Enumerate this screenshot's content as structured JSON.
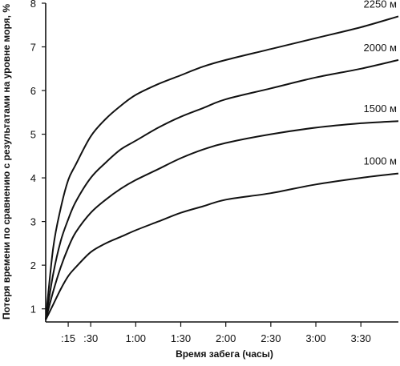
{
  "chart_data": {
    "type": "line",
    "title": "",
    "xlabel": "Время забега (часы)",
    "ylabel": "Потеря времени по сравнению с результатами на уровне моря, %",
    "x_unit": "minutes",
    "xlim": [
      0,
      235
    ],
    "ylim": [
      0.7,
      8
    ],
    "x_ticks": [
      {
        "value": 15,
        "label": ":15"
      },
      {
        "value": 30,
        "label": ":30"
      },
      {
        "value": 60,
        "label": "1:00"
      },
      {
        "value": 90,
        "label": "1:30"
      },
      {
        "value": 120,
        "label": "2:00"
      },
      {
        "value": 150,
        "label": "2:30"
      },
      {
        "value": 180,
        "label": "3:00"
      },
      {
        "value": 210,
        "label": "3:30"
      }
    ],
    "y_ticks": [
      {
        "value": 1,
        "label": "1"
      },
      {
        "value": 2,
        "label": "2"
      },
      {
        "value": 3,
        "label": "3"
      },
      {
        "value": 4,
        "label": "4"
      },
      {
        "value": 5,
        "label": "5"
      },
      {
        "value": 6,
        "label": "6"
      },
      {
        "value": 7,
        "label": "7"
      },
      {
        "value": 8,
        "label": "8"
      }
    ],
    "grid": false,
    "legend": "none",
    "series": [
      {
        "name": "2250 м",
        "x": [
          0,
          5,
          10,
          15,
          20,
          30,
          40,
          50,
          60,
          75,
          90,
          105,
          120,
          150,
          180,
          210,
          235
        ],
        "y": [
          0.75,
          2.4,
          3.3,
          3.95,
          4.3,
          4.95,
          5.35,
          5.65,
          5.9,
          6.15,
          6.35,
          6.55,
          6.7,
          6.95,
          7.2,
          7.45,
          7.7
        ]
      },
      {
        "name": "2000 м",
        "x": [
          0,
          5,
          10,
          15,
          20,
          30,
          40,
          50,
          60,
          75,
          90,
          105,
          120,
          150,
          180,
          210,
          235
        ],
        "y": [
          0.75,
          1.8,
          2.55,
          3.05,
          3.45,
          4.0,
          4.35,
          4.65,
          4.85,
          5.15,
          5.4,
          5.6,
          5.8,
          6.05,
          6.3,
          6.5,
          6.7
        ]
      },
      {
        "name": "1500 м",
        "x": [
          0,
          5,
          10,
          15,
          20,
          30,
          40,
          50,
          60,
          75,
          90,
          105,
          120,
          150,
          180,
          210,
          235
        ],
        "y": [
          0.75,
          1.4,
          1.95,
          2.4,
          2.75,
          3.2,
          3.5,
          3.75,
          3.95,
          4.2,
          4.45,
          4.65,
          4.8,
          5.0,
          5.15,
          5.25,
          5.3
        ]
      },
      {
        "name": "1000 м",
        "x": [
          0,
          5,
          10,
          15,
          20,
          30,
          40,
          50,
          60,
          75,
          90,
          105,
          120,
          150,
          180,
          210,
          235
        ],
        "y": [
          0.75,
          1.1,
          1.45,
          1.75,
          1.95,
          2.3,
          2.5,
          2.65,
          2.8,
          3.0,
          3.2,
          3.35,
          3.5,
          3.65,
          3.85,
          4.0,
          4.1
        ]
      }
    ]
  }
}
